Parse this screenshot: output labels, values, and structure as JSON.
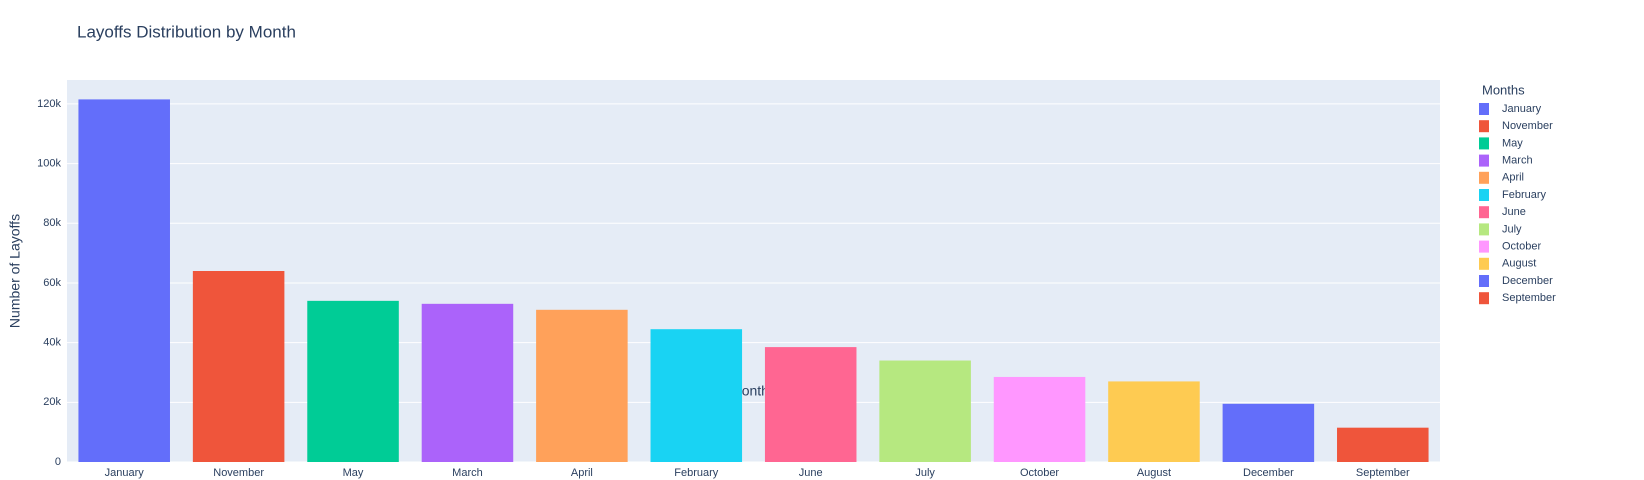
{
  "chart_data": {
    "type": "bar",
    "title": "Layoffs Distribution by Month",
    "x_label": "Months",
    "y_label": "Number of Layoffs",
    "legend_title": "Months",
    "categories": [
      "January",
      "November",
      "May",
      "March",
      "April",
      "February",
      "June",
      "July",
      "October",
      "August",
      "December",
      "September"
    ],
    "values": [
      121500,
      64000,
      54000,
      53000,
      51000,
      44500,
      38500,
      34000,
      28500,
      27000,
      19500,
      11500
    ],
    "colors": [
      "#636efa",
      "#ef553b",
      "#00cc96",
      "#ab63fa",
      "#ffa15a",
      "#19d3f3",
      "#ff6692",
      "#b6e880",
      "#ff97ff",
      "#fecb52",
      "#636efa",
      "#ef553b"
    ],
    "ylim": [
      0,
      128000
    ],
    "yticks": [
      0,
      {
        "value": 20000,
        "label": "20k"
      },
      {
        "value": 40000,
        "label": "40k"
      },
      {
        "value": 60000,
        "label": "60k"
      },
      {
        "value": 80000,
        "label": "80k"
      },
      {
        "value": 100000,
        "label": "100k"
      },
      {
        "value": 120000,
        "label": "120k"
      }
    ],
    "grid": true,
    "legend_position": "right"
  }
}
